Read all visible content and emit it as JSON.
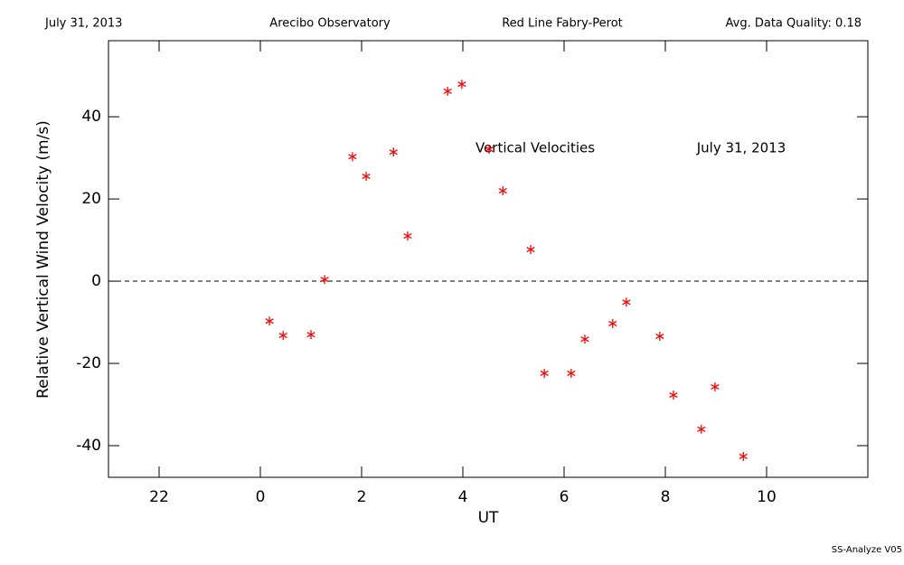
{
  "header": {
    "date": "July 31, 2013",
    "site": "Arecibo Observatory",
    "instrument": "Red Line Fabry-Perot",
    "quality": "Avg. Data Quality: 0.18"
  },
  "footer": "SS-Analyze V05",
  "chart_data": {
    "type": "scatter",
    "xlabel": "UT",
    "ylabel": "Relative Vertical Wind Velocity (m/s)",
    "annotations": [
      "Vertical Velocities",
      "July 31, 2013"
    ],
    "color": "#ff0000",
    "xlim": [
      -3,
      12
    ],
    "xticks": [
      {
        "value": -2,
        "label": "22"
      },
      0,
      2,
      4,
      6,
      8,
      10
    ],
    "ylim": [
      -47.7,
      58.5
    ],
    "yticks": [
      -40,
      -20,
      0,
      20,
      40
    ],
    "hline": 0,
    "x": [
      0.18,
      0.45,
      1.0,
      1.27,
      1.82,
      2.09,
      2.63,
      2.91,
      3.7,
      3.98,
      4.52,
      4.79,
      5.34,
      5.61,
      6.14,
      6.41,
      6.96,
      7.23,
      7.89,
      8.16,
      8.71,
      8.98,
      9.54
    ],
    "values": [
      -9.7,
      -13.2,
      -13.0,
      0.4,
      30.3,
      25.5,
      31.4,
      11.0,
      46.2,
      47.9,
      32.1,
      22.0,
      7.7,
      -22.4,
      -22.4,
      -14.1,
      -10.3,
      -5.1,
      -13.4,
      -27.7,
      -36.0,
      -25.7,
      -42.6
    ]
  }
}
